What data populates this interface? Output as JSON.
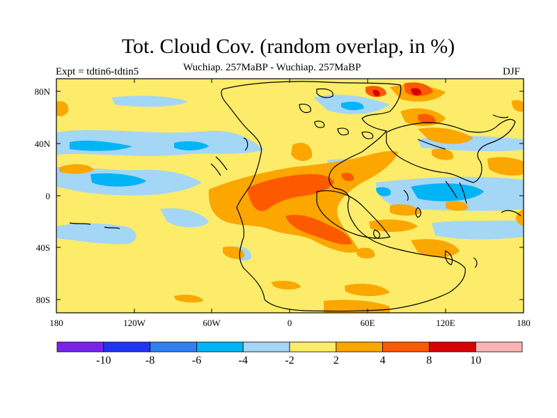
{
  "header": {
    "title": "Tot. Cloud Cov. (random overlap, in %)",
    "subtitle": "Wuchiap. 257MaBP - Wuchiap. 257MaBP",
    "experiment": "Expt = tdtin6-tdtin5",
    "season": "DJF"
  },
  "map": {
    "lat_labels": [
      "80N",
      "40N",
      "0",
      "40S",
      "80S"
    ],
    "lon_labels": [
      "180",
      "120W",
      "60W",
      "0",
      "60E",
      "120E",
      "180"
    ]
  },
  "colorbar": {
    "colors": [
      "#7b22e8",
      "#1f34f0",
      "#2f80f0",
      "#00b4f5",
      "#a4d6f5",
      "#fcec6a",
      "#fca600",
      "#fc5a00",
      "#d80000",
      "#fcb4b4"
    ],
    "labels": [
      "-10",
      "-8",
      "-6",
      "-4",
      "-2",
      "2",
      "4",
      "8",
      "10"
    ]
  }
}
